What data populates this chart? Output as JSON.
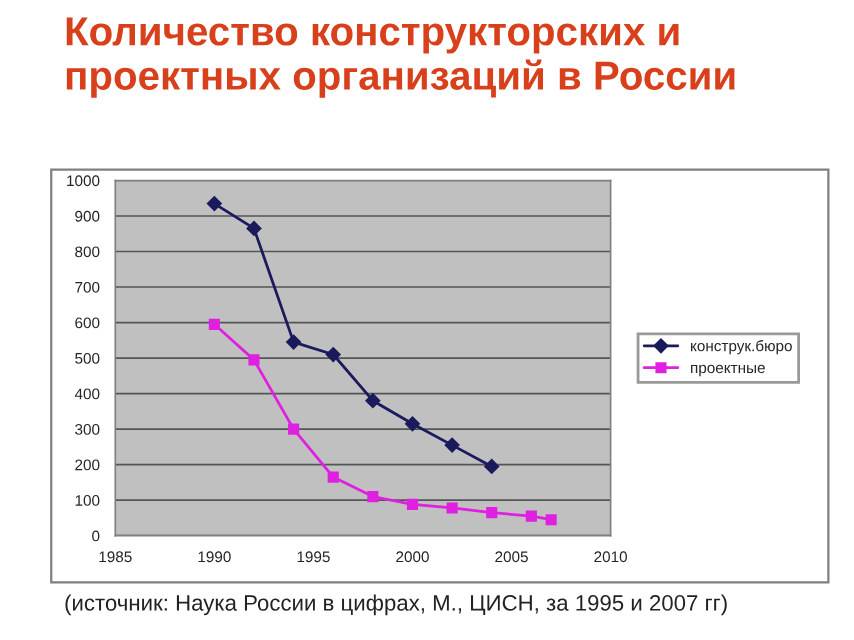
{
  "chart_data": {
    "type": "line",
    "title": "Количество конструкторских и\nпроектных организаций в России",
    "x": [
      1990,
      1992,
      1994,
      1996,
      1998,
      2000,
      2002,
      2004,
      2006,
      2007
    ],
    "series": [
      {
        "name": "конструк.бюро",
        "color": "#1a1a5c",
        "marker": "diamond",
        "values": [
          935,
          865,
          545,
          510,
          380,
          315,
          255,
          195,
          null,
          null
        ]
      },
      {
        "name": "проектные",
        "color": "#e020e0",
        "marker": "square",
        "values": [
          595,
          495,
          300,
          165,
          110,
          88,
          78,
          65,
          55,
          45
        ]
      }
    ],
    "xlim": [
      1985,
      2010
    ],
    "xticks": [
      1985,
      1990,
      1995,
      2000,
      2005,
      2010
    ],
    "ylim": [
      0,
      1000
    ],
    "yticks": [
      0,
      100,
      200,
      300,
      400,
      500,
      600,
      700,
      800,
      900,
      1000
    ],
    "grid": "y",
    "legend": "right",
    "line_style": "solid",
    "annotations": [
      "(источник: Наука России в цифрах, М., ЦИСН, за 1995 и 2007 гг)"
    ]
  }
}
